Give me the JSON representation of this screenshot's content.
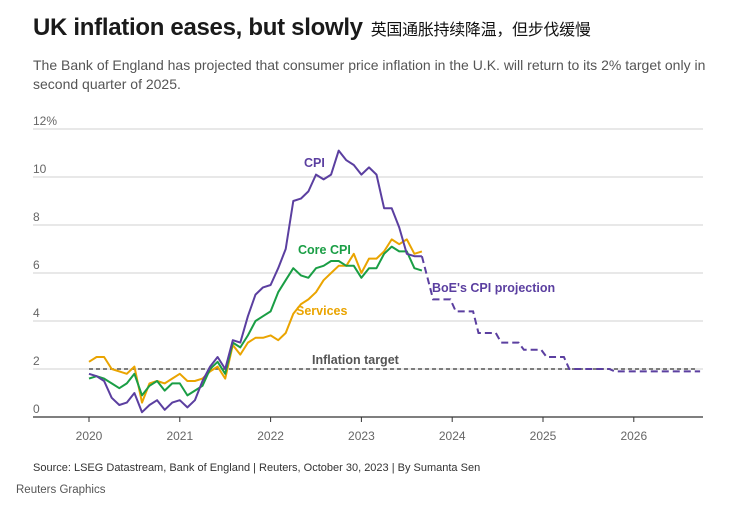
{
  "header": {
    "title": "UK inflation eases, but slowly",
    "title_zh": "英国通胀持续降温，但步伐缓慢",
    "subtitle": "The Bank of England has projected that consumer price inflation in the U.K. will return to its 2% target only in second quarter of 2025."
  },
  "footer": {
    "source": "Source: LSEG Datastream, Bank of England | Reuters, October 30, 2023 | By Sumanta Sen",
    "credit": "Reuters Graphics"
  },
  "chart_data": {
    "type": "line",
    "title": "UK inflation eases, but slowly",
    "xlabel": "",
    "ylabel": "",
    "x_start": "2020-01",
    "x_frequency": "monthly",
    "xlim": [
      2019.4,
      2026.9
    ],
    "ylim": [
      0,
      12
    ],
    "y_ticks": [
      0,
      2,
      4,
      6,
      8,
      10,
      12
    ],
    "y_tick_labels": [
      "0",
      "2",
      "4",
      "6",
      "8",
      "10",
      "12%"
    ],
    "x_ticks": [
      2020,
      2021,
      2022,
      2023,
      2024,
      2025,
      2026
    ],
    "x_tick_labels": [
      "2020",
      "2021",
      "2022",
      "2023",
      "2024",
      "2025",
      "2026"
    ],
    "grid": true,
    "colors": {
      "cpi": "#5b3fa0",
      "core": "#1a9e45",
      "services": "#eaa400",
      "target": "#555555"
    },
    "series": [
      {
        "name": "CPI",
        "label": "CPI",
        "values": [
          1.8,
          1.7,
          1.5,
          0.8,
          0.5,
          0.6,
          1.0,
          0.2,
          0.5,
          0.7,
          0.3,
          0.6,
          0.7,
          0.4,
          0.7,
          1.5,
          2.1,
          2.5,
          2.0,
          3.2,
          3.1,
          4.2,
          5.1,
          5.4,
          5.5,
          6.2,
          7.0,
          9.0,
          9.1,
          9.4,
          10.1,
          9.9,
          10.1,
          11.1,
          10.7,
          10.5,
          10.1,
          10.4,
          10.1,
          8.7,
          8.7,
          7.9,
          6.8,
          6.7,
          6.7
        ]
      },
      {
        "name": "Core CPI",
        "label": "Core CPI",
        "values": [
          1.6,
          1.7,
          1.6,
          1.4,
          1.2,
          1.4,
          1.8,
          0.9,
          1.3,
          1.5,
          1.1,
          1.4,
          1.4,
          0.9,
          1.1,
          1.3,
          2.0,
          2.3,
          1.8,
          3.1,
          2.9,
          3.4,
          4.0,
          4.2,
          4.4,
          5.2,
          5.7,
          6.2,
          5.9,
          5.8,
          6.2,
          6.3,
          6.5,
          6.5,
          6.3,
          6.3,
          5.8,
          6.2,
          6.2,
          6.8,
          7.1,
          6.9,
          6.9,
          6.2,
          6.1
        ]
      },
      {
        "name": "Services",
        "label": "Services",
        "values": [
          2.3,
          2.5,
          2.5,
          2.0,
          1.9,
          1.8,
          2.1,
          0.6,
          1.4,
          1.5,
          1.4,
          1.6,
          1.8,
          1.5,
          1.5,
          1.6,
          1.9,
          2.1,
          1.6,
          3.0,
          2.6,
          3.1,
          3.3,
          3.3,
          3.4,
          3.2,
          3.5,
          4.3,
          4.7,
          4.9,
          5.2,
          5.7,
          6.0,
          6.3,
          6.3,
          6.8,
          6.0,
          6.6,
          6.6,
          6.9,
          7.4,
          7.2,
          7.4,
          6.8,
          6.9
        ]
      },
      {
        "name": "BoE's CPI projection",
        "label": "BoE's CPI projection",
        "style": "dashed",
        "quarters": [
          "2023Q4",
          "2024Q1",
          "2024Q2",
          "2024Q3",
          "2024Q4",
          "2025Q1",
          "2025Q2",
          "2025Q3",
          "2025Q4",
          "2026Q1",
          "2026Q2",
          "2026Q3"
        ],
        "values": [
          4.9,
          4.4,
          3.5,
          3.1,
          2.8,
          2.5,
          2.0,
          2.0,
          1.9,
          1.9,
          1.9,
          1.9
        ]
      },
      {
        "name": "Inflation target",
        "label": "Inflation target",
        "style": "dotted",
        "value": 2
      }
    ]
  }
}
